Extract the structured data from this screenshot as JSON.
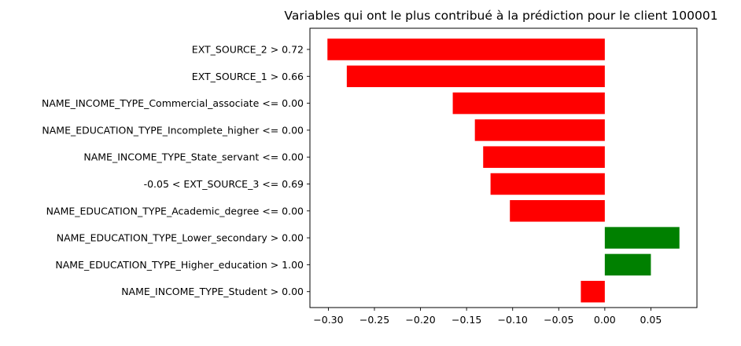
{
  "chart_data": {
    "type": "bar",
    "orientation": "horizontal",
    "title": "Variables qui ont le plus contribué à la prédiction pour le client 100001",
    "xlabel": "",
    "ylabel": "",
    "xlim": [
      -0.32,
      0.1
    ],
    "xticks": [
      -0.3,
      -0.25,
      -0.2,
      -0.15,
      -0.1,
      -0.05,
      0.0,
      0.05
    ],
    "xtick_labels": [
      "−0.30",
      "−0.25",
      "−0.20",
      "−0.15",
      "−0.10",
      "−0.05",
      "0.00",
      "0.05"
    ],
    "grid": false,
    "categories": [
      "EXT_SOURCE_2 > 0.72",
      "EXT_SOURCE_1 > 0.66",
      "NAME_INCOME_TYPE_Commercial_associate <= 0.00",
      "NAME_EDUCATION_TYPE_Incomplete_higher <= 0.00",
      "NAME_INCOME_TYPE_State_servant <= 0.00",
      "-0.05 < EXT_SOURCE_3 <= 0.69",
      "NAME_EDUCATION_TYPE_Academic_degree <= 0.00",
      "NAME_EDUCATION_TYPE_Lower_secondary > 0.00",
      "NAME_EDUCATION_TYPE_Higher_education > 1.00",
      "NAME_INCOME_TYPE_Student > 0.00"
    ],
    "values": [
      -0.301,
      -0.28,
      -0.165,
      -0.141,
      -0.132,
      -0.124,
      -0.103,
      0.081,
      0.05,
      -0.026
    ],
    "colors": {
      "negative": "#ff0000",
      "positive": "#008000"
    }
  }
}
